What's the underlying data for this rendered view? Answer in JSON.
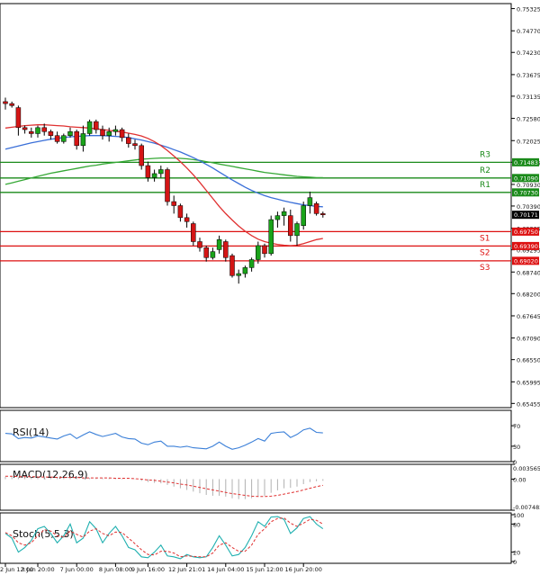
{
  "main": {
    "y_ticks": [
      "0.75325",
      "0.74770",
      "0.74230",
      "0.73675",
      "0.73135",
      "0.72580",
      "0.72025",
      "0.71485",
      "0.70930",
      "0.70390",
      "0.69835",
      "0.69295",
      "0.68740",
      "0.68200",
      "0.67645",
      "0.67090",
      "0.66550",
      "0.65995",
      "0.65455"
    ],
    "current_price": "0.70171",
    "levels": [
      {
        "label": "R3",
        "price_label": "0.71483",
        "color": "#1a8a1a"
      },
      {
        "label": "R2",
        "price_label": "0.71090",
        "color": "#1a8a1a"
      },
      {
        "label": "R1",
        "price_label": "0.70730",
        "color": "#1a8a1a"
      },
      {
        "label": "S1",
        "price_label": "0.69750",
        "color": "#dd1111"
      },
      {
        "label": "S2",
        "price_label": "0.69390",
        "color": "#dd1111"
      },
      {
        "label": "S3",
        "price_label": "0.69020",
        "color": "#dd1111"
      }
    ],
    "ma_fast_color": "#e03030",
    "ma_mid_color": "#3a6fd8",
    "ma_slow_color": "#35a835"
  },
  "x_labels": [
    "2 Jun 12:00",
    "3 Jun 20:00",
    "7 Jun 00:00",
    "8 Jun 08:00",
    "9 Jun 16:00",
    "12 Jun 21:01",
    "14 Jun 04:00",
    "15 Jun 12:00",
    "16 Jun 20:00"
  ],
  "rsi": {
    "title": "RSI(14)",
    "ticks": [
      "70",
      "30",
      "0"
    ],
    "color": "#3a7fd8"
  },
  "macd": {
    "title": "MACD(12,26,9)",
    "ticks": [
      "0.003565",
      "0.00",
      "-0.007482"
    ],
    "hist_color": "#b0b0b0",
    "signal_color": "#e03030"
  },
  "stoch": {
    "title": "Stoch(5,5,3)",
    "ticks": [
      "100",
      "80",
      "20",
      "0"
    ],
    "k_color": "#20b0b0",
    "d_color": "#e03030"
  },
  "chart_data": [
    {
      "type": "candlestick",
      "title": "",
      "y_unit": "price",
      "ylim": [
        0.6535,
        0.7545
      ],
      "grid": false,
      "series": [
        {
          "name": "",
          "kind": "ohlc",
          "values": [
            [
              0.73,
              0.731,
              0.728,
              0.7295
            ],
            [
              0.7295,
              0.73,
              0.7285,
              0.729
            ],
            [
              0.7285,
              0.729,
              0.7215,
              0.7235
            ],
            [
              0.7235,
              0.724,
              0.722,
              0.723
            ],
            [
              0.7225,
              0.7235,
              0.721,
              0.722
            ],
            [
              0.722,
              0.724,
              0.721,
              0.7235
            ],
            [
              0.7235,
              0.7245,
              0.7215,
              0.7225
            ],
            [
              0.7225,
              0.723,
              0.7205,
              0.7215
            ],
            [
              0.7215,
              0.7225,
              0.7195,
              0.72
            ],
            [
              0.72,
              0.722,
              0.7195,
              0.7215
            ],
            [
              0.7215,
              0.7235,
              0.721,
              0.7225
            ],
            [
              0.7225,
              0.723,
              0.718,
              0.719
            ],
            [
              0.719,
              0.724,
              0.7175,
              0.722
            ],
            [
              0.722,
              0.7255,
              0.7215,
              0.725
            ],
            [
              0.725,
              0.7255,
              0.722,
              0.723
            ],
            [
              0.723,
              0.724,
              0.7205,
              0.7215
            ],
            [
              0.7215,
              0.7235,
              0.72,
              0.7225
            ],
            [
              0.7225,
              0.724,
              0.7215,
              0.723
            ],
            [
              0.723,
              0.7235,
              0.72,
              0.721
            ],
            [
              0.721,
              0.722,
              0.7185,
              0.7195
            ],
            [
              0.7195,
              0.7205,
              0.718,
              0.719
            ],
            [
              0.719,
              0.7195,
              0.713,
              0.714
            ],
            [
              0.714,
              0.715,
              0.71,
              0.711
            ],
            [
              0.711,
              0.713,
              0.71,
              0.712
            ],
            [
              0.712,
              0.714,
              0.711,
              0.713
            ],
            [
              0.713,
              0.7135,
              0.704,
              0.705
            ],
            [
              0.705,
              0.7065,
              0.702,
              0.704
            ],
            [
              0.704,
              0.7045,
              0.7,
              0.701
            ],
            [
              0.701,
              0.702,
              0.6985,
              0.7
            ],
            [
              0.6995,
              0.7,
              0.694,
              0.695
            ],
            [
              0.695,
              0.696,
              0.6925,
              0.6935
            ],
            [
              0.6935,
              0.694,
              0.69,
              0.691
            ],
            [
              0.691,
              0.6935,
              0.6905,
              0.6925
            ],
            [
              0.693,
              0.6965,
              0.692,
              0.6955
            ],
            [
              0.695,
              0.6955,
              0.69,
              0.691
            ],
            [
              0.6915,
              0.692,
              0.686,
              0.6865
            ],
            [
              0.6865,
              0.688,
              0.6845,
              0.687
            ],
            [
              0.687,
              0.689,
              0.686,
              0.6885
            ],
            [
              0.6885,
              0.691,
              0.6875,
              0.6905
            ],
            [
              0.6905,
              0.695,
              0.6895,
              0.694
            ],
            [
              0.694,
              0.6945,
              0.691,
              0.692
            ],
            [
              0.692,
              0.7015,
              0.6915,
              0.7005
            ],
            [
              0.7005,
              0.7025,
              0.6985,
              0.7015
            ],
            [
              0.7015,
              0.7035,
              0.699,
              0.7025
            ],
            [
              0.7015,
              0.703,
              0.695,
              0.6965
            ],
            [
              0.6965,
              0.7,
              0.694,
              0.6995
            ],
            [
              0.699,
              0.705,
              0.698,
              0.704
            ],
            [
              0.704,
              0.7075,
              0.702,
              0.706
            ],
            [
              0.7045,
              0.705,
              0.7015,
              0.702
            ],
            [
              0.702,
              0.7025,
              0.701,
              0.7017
            ]
          ]
        },
        {
          "name": "",
          "kind": "ma_fast",
          "values": [
            0.7234,
            0.7236,
            0.7238,
            0.724,
            0.7241,
            0.7242,
            0.7242,
            0.7241,
            0.724,
            0.7239,
            0.7237,
            0.7236,
            0.7235,
            0.7234,
            0.7232,
            0.723,
            0.7228,
            0.7226,
            0.7224,
            0.7221,
            0.7218,
            0.7214,
            0.7208,
            0.72,
            0.719,
            0.7178,
            0.7164,
            0.715,
            0.7134,
            0.7117,
            0.7098,
            0.7078,
            0.7058,
            0.7038,
            0.702,
            0.7004,
            0.6989,
            0.6976,
            0.6965,
            0.6956,
            0.695,
            0.6946,
            0.6943,
            0.6941,
            0.694,
            0.6941,
            0.6945,
            0.695,
            0.6955,
            0.6958
          ]
        },
        {
          "name": "",
          "kind": "ma_mid",
          "values": [
            0.7181,
            0.7185,
            0.7189,
            0.7193,
            0.7197,
            0.72,
            0.7203,
            0.7206,
            0.7208,
            0.721,
            0.7212,
            0.7213,
            0.7214,
            0.7215,
            0.7215,
            0.7215,
            0.7214,
            0.7213,
            0.7212,
            0.721,
            0.7207,
            0.7204,
            0.72,
            0.7196,
            0.7191,
            0.7186,
            0.718,
            0.7174,
            0.7167,
            0.716,
            0.7152,
            0.7143,
            0.7134,
            0.7124,
            0.7114,
            0.7104,
            0.7095,
            0.7086,
            0.7078,
            0.7071,
            0.7065,
            0.706,
            0.7056,
            0.7052,
            0.7048,
            0.7045,
            0.7042,
            0.704,
            0.7038,
            0.7037
          ]
        },
        {
          "name": "",
          "kind": "ma_slow",
          "values": [
            0.7093,
            0.7097,
            0.7101,
            0.7105,
            0.7109,
            0.7113,
            0.7117,
            0.7121,
            0.7124,
            0.7127,
            0.713,
            0.7133,
            0.7136,
            0.7139,
            0.7141,
            0.7144,
            0.7146,
            0.7148,
            0.715,
            0.7152,
            0.7154,
            0.7156,
            0.7157,
            0.7158,
            0.7159,
            0.7159,
            0.7159,
            0.7158,
            0.7157,
            0.7155,
            0.7153,
            0.715,
            0.7147,
            0.7144,
            0.7141,
            0.7138,
            0.7135,
            0.7132,
            0.7129,
            0.7126,
            0.7123,
            0.7121,
            0.7119,
            0.7117,
            0.7115,
            0.7113,
            0.7112,
            0.7111,
            0.711,
            0.711
          ]
        }
      ],
      "horizontal_levels": [
        0.71483,
        0.7109,
        0.7073,
        0.6975,
        0.6939,
        0.6902
      ]
    },
    {
      "type": "line",
      "title": "RSI(14)",
      "ylim": [
        0,
        100
      ],
      "series": [
        {
          "name": "",
          "values": [
            55,
            54,
            45,
            47,
            46,
            50,
            48,
            46,
            44,
            50,
            54,
            45,
            52,
            58,
            53,
            49,
            52,
            55,
            48,
            45,
            44,
            36,
            33,
            38,
            40,
            30,
            30,
            28,
            30,
            27,
            26,
            25,
            30,
            38,
            30,
            24,
            27,
            32,
            38,
            45,
            40,
            55,
            57,
            58,
            47,
            53,
            62,
            65,
            57,
            56
          ]
        }
      ]
    },
    {
      "type": "bar",
      "title": "MACD(12,26,9)",
      "ylim": [
        -0.007482,
        0.003565
      ],
      "series": [
        {
          "name": "",
          "kind": "histogram",
          "values": [
            0.0006,
            0.0006,
            0.0005,
            0.0005,
            0.0004,
            0.0004,
            0.0004,
            0.0003,
            0.0003,
            0.0003,
            0.0003,
            0.0002,
            0.0002,
            0.0003,
            0.0003,
            0.0002,
            0.0002,
            0.0002,
            0.0001,
            0.0,
            -0.0001,
            -0.0004,
            -0.0007,
            -0.0009,
            -0.001,
            -0.0014,
            -0.0018,
            -0.0022,
            -0.0026,
            -0.003,
            -0.0034,
            -0.0038,
            -0.004,
            -0.004,
            -0.0042,
            -0.0046,
            -0.0048,
            -0.0048,
            -0.0046,
            -0.0042,
            -0.004,
            -0.0033,
            -0.0027,
            -0.0022,
            -0.0021,
            -0.0018,
            -0.0012,
            -0.0007,
            -0.0005,
            -0.0004
          ]
        },
        {
          "name": "",
          "kind": "signal",
          "values": [
            0.0007,
            0.0007,
            0.0006,
            0.0006,
            0.0006,
            0.0005,
            0.0005,
            0.0005,
            0.0004,
            0.0004,
            0.0004,
            0.0004,
            0.0003,
            0.0003,
            0.0003,
            0.0003,
            0.0003,
            0.0002,
            0.0002,
            0.0002,
            0.0001,
            0.0,
            -0.0002,
            -0.0003,
            -0.0005,
            -0.0007,
            -0.0009,
            -0.0012,
            -0.0014,
            -0.0017,
            -0.002,
            -0.0023,
            -0.0026,
            -0.0029,
            -0.0032,
            -0.0035,
            -0.0037,
            -0.0039,
            -0.0041,
            -0.0042,
            -0.0042,
            -0.0041,
            -0.0039,
            -0.0036,
            -0.0033,
            -0.003,
            -0.0026,
            -0.0022,
            -0.0018,
            -0.0015
          ]
        }
      ]
    },
    {
      "type": "line",
      "title": "Stoch(5,5,3)",
      "ylim": [
        0,
        100
      ],
      "series": [
        {
          "name": "",
          "kind": "k",
          "values": [
            60,
            50,
            20,
            30,
            45,
            70,
            75,
            60,
            40,
            55,
            80,
            40,
            50,
            85,
            70,
            40,
            60,
            75,
            55,
            30,
            25,
            10,
            8,
            20,
            35,
            12,
            10,
            6,
            15,
            10,
            8,
            10,
            30,
            55,
            35,
            12,
            15,
            30,
            55,
            85,
            75,
            95,
            96,
            90,
            60,
            72,
            92,
            96,
            80,
            70
          ]
        },
        {
          "name": "",
          "kind": "d",
          "values": [
            62,
            55,
            40,
            35,
            40,
            55,
            68,
            65,
            55,
            52,
            65,
            58,
            52,
            65,
            70,
            60,
            55,
            63,
            62,
            50,
            38,
            25,
            15,
            14,
            22,
            22,
            18,
            10,
            12,
            11,
            10,
            10,
            18,
            35,
            40,
            30,
            22,
            22,
            35,
            58,
            70,
            85,
            92,
            93,
            82,
            75,
            82,
            90,
            88,
            80
          ]
        }
      ]
    }
  ]
}
